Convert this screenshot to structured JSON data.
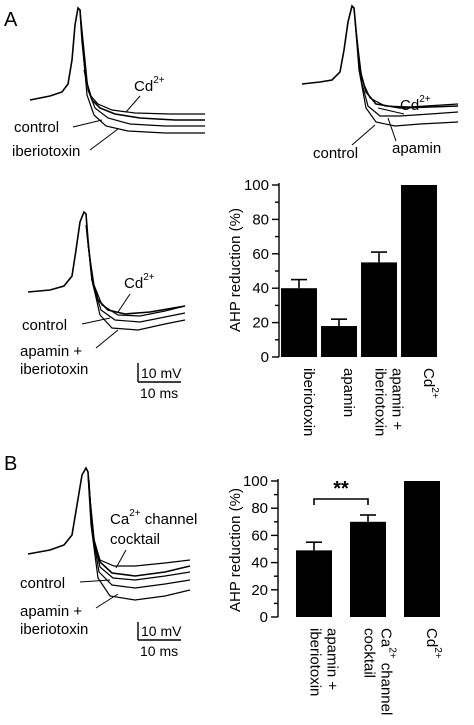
{
  "panels": {
    "a": "A",
    "b": "B"
  },
  "trace_labels": {
    "cd": "Cd",
    "cd_sup": "2+",
    "control": "control",
    "iberiotoxin": "iberiotoxin",
    "apamin": "apamin",
    "apamin_plus": "apamin +",
    "iberiotoxin_line2": "iberiotoxin",
    "ca": "Ca",
    "ca_sup": "2+",
    "channel": " channel",
    "cocktail": "cocktail"
  },
  "scale_bars": {
    "voltage": "10 mV",
    "time": "10 ms"
  },
  "chart_data": [
    {
      "type": "bar",
      "panel": "A",
      "ylabel": "AHP reduction (%)",
      "ylim": [
        0,
        100
      ],
      "yticks": [
        0,
        20,
        40,
        60,
        80,
        100
      ],
      "categories": [
        "iberiotoxin",
        "apamin",
        "apamin + iberiotoxin",
        "Cd2+"
      ],
      "category_lines": [
        [
          {
            "t": "iberiotoxin"
          }
        ],
        [
          {
            "t": "apamin"
          }
        ],
        [
          {
            "t": "apamin +"
          },
          {
            "t": "iberiotoxin"
          }
        ],
        [
          {
            "t": "Cd"
          },
          {
            "t": "2+",
            "sup": true
          }
        ]
      ],
      "values": [
        40,
        18,
        55,
        100
      ],
      "errors": [
        5,
        4,
        6,
        0
      ]
    },
    {
      "type": "bar",
      "panel": "B",
      "ylabel": "AHP reduction (%)",
      "ylim": [
        0,
        100
      ],
      "yticks": [
        0,
        20,
        40,
        60,
        80,
        100
      ],
      "categories": [
        "apamin + iberiotoxin",
        "Ca2+ channel cocktail",
        "Cd2+"
      ],
      "category_lines": [
        [
          {
            "t": "apamin +"
          },
          {
            "t": "iberiotoxin"
          }
        ],
        [
          {
            "t": "Ca"
          },
          {
            "t": "2+",
            "sup": true
          },
          {
            "t": " channel"
          },
          {
            "t": "cocktail",
            "br": true
          }
        ],
        [
          {
            "t": "Cd"
          },
          {
            "t": "2+",
            "sup": true
          }
        ]
      ],
      "values": [
        49,
        70,
        100
      ],
      "errors": [
        6,
        5,
        0
      ],
      "annotations": [
        {
          "text": "**",
          "between": [
            0,
            1
          ]
        }
      ]
    }
  ]
}
